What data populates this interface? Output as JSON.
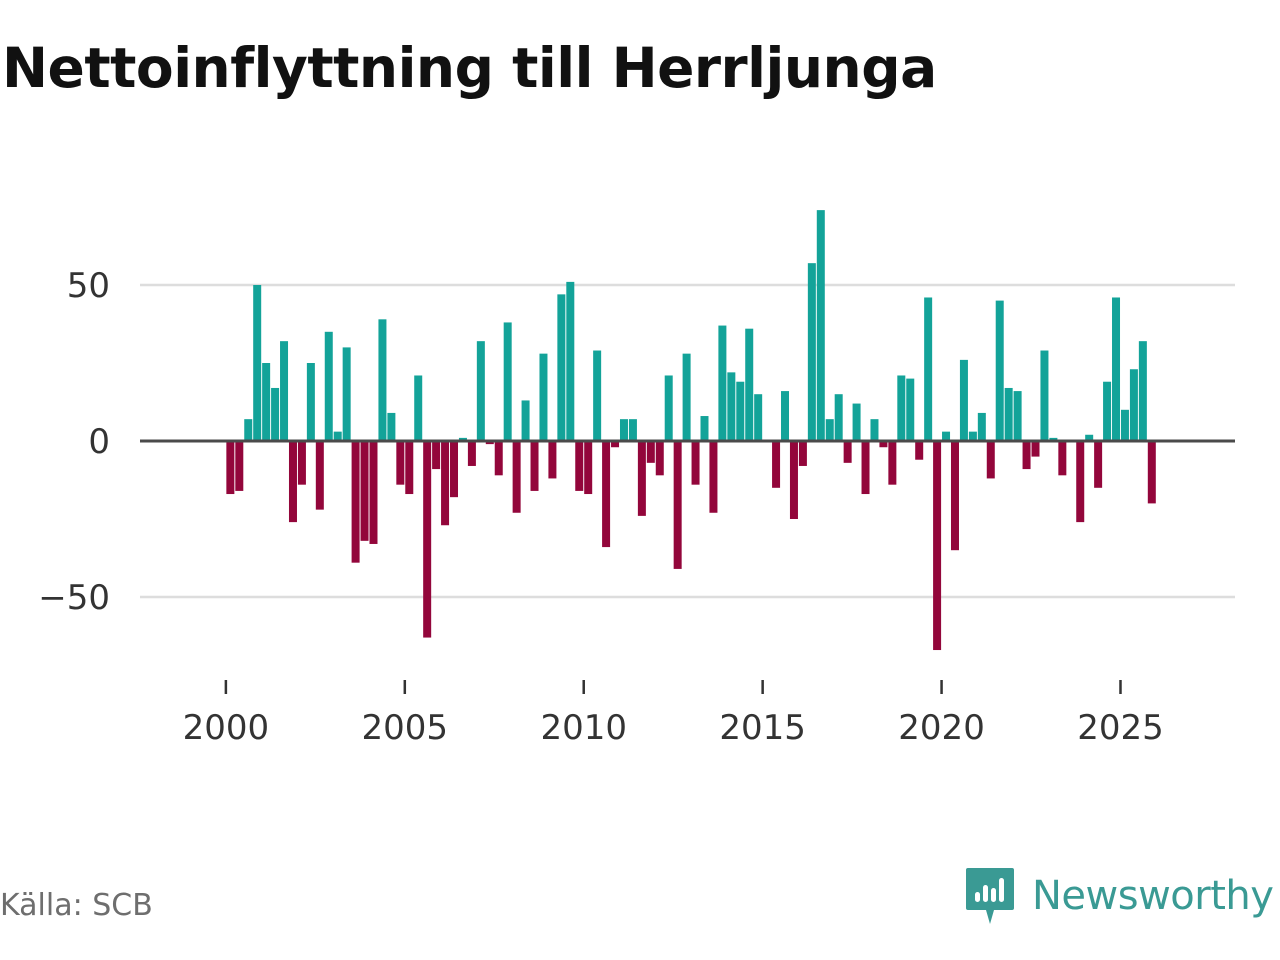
{
  "title": "Nettoinflyttning till Herrljunga",
  "source": "Källa: SCB",
  "brand": {
    "name": "Newsworthy",
    "icon": "newsworthy-logo-icon"
  },
  "colors": {
    "positive": "#13a399",
    "negative": "#93063b",
    "zero_line": "#4a4a4a",
    "grid": "#dddddd",
    "brand": "#3a9a94"
  },
  "chart_data": {
    "type": "bar",
    "title": "Nettoinflyttning till Herrljunga",
    "xlabel": "",
    "ylabel": "",
    "ylim": [
      -70,
      80
    ],
    "xlim": [
      1997.6,
      2028.2
    ],
    "grid": true,
    "y_ticks": [
      50,
      0,
      -50
    ],
    "y_tick_labels": [
      "50",
      "0",
      "−50"
    ],
    "x_ticks": [
      2000,
      2005,
      2010,
      2015,
      2020,
      2025
    ],
    "x_tick_labels": [
      "2000",
      "2005",
      "2010",
      "2015",
      "2020",
      "2025"
    ],
    "frequency": "quarterly",
    "start": "2000-Q1",
    "values": [
      -17,
      -16,
      7,
      50,
      25,
      17,
      32,
      -26,
      -14,
      25,
      -22,
      35,
      3,
      30,
      -39,
      -32,
      -33,
      39,
      9,
      -14,
      -17,
      21,
      -63,
      -9,
      -27,
      -18,
      1,
      -8,
      32,
      -1,
      -11,
      38,
      -23,
      13,
      -16,
      28,
      -12,
      47,
      51,
      -16,
      -17,
      29,
      -34,
      -2,
      7,
      7,
      -24,
      -7,
      -11,
      21,
      -41,
      28,
      -14,
      8,
      -23,
      37,
      22,
      19,
      36,
      15,
      0,
      -15,
      16,
      -25,
      -8,
      57,
      74,
      7,
      15,
      -7,
      12,
      -17,
      7,
      -2,
      -14,
      21,
      20,
      -6,
      46,
      -67,
      3,
      -35,
      26,
      3,
      9,
      -12,
      45,
      17,
      16,
      -9,
      -5,
      29,
      1,
      -11,
      0,
      -26,
      2,
      -15,
      19,
      46,
      10,
      23,
      32,
      -20
    ]
  }
}
